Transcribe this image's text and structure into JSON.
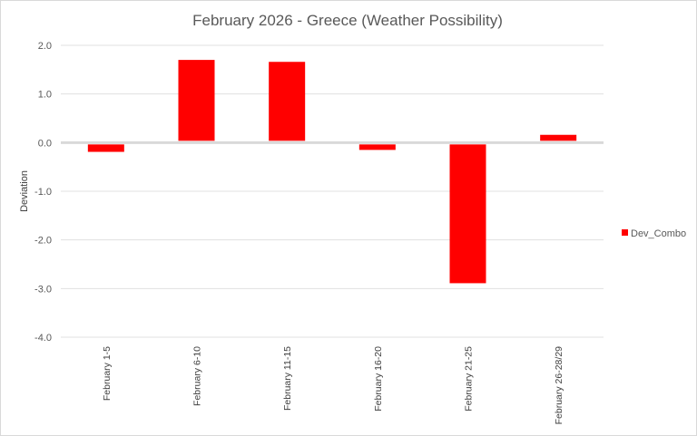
{
  "chart_data": {
    "type": "bar",
    "title": "February 2026 - Greece (Weather Possibility)",
    "xlabel": "",
    "ylabel": "Deviation",
    "ylim": [
      -4.0,
      2.0
    ],
    "yticks": [
      "2.0",
      "1.0",
      "0.0",
      "-1.0",
      "-2.0",
      "-3.0",
      "-4.0"
    ],
    "ytick_values": [
      2,
      1,
      0,
      -1,
      -2,
      -3,
      -4
    ],
    "grid": true,
    "legend_position": "right",
    "categories": [
      "February 1-5",
      "February 6-10",
      "February 11-15",
      "February 16-20",
      "February 21-25",
      "February 26-28/29"
    ],
    "series": [
      {
        "name": "Dev_Combo",
        "color": "#ff0000",
        "values": [
          -0.19,
          1.7,
          1.66,
          -0.15,
          -2.89,
          0.16
        ]
      }
    ]
  }
}
